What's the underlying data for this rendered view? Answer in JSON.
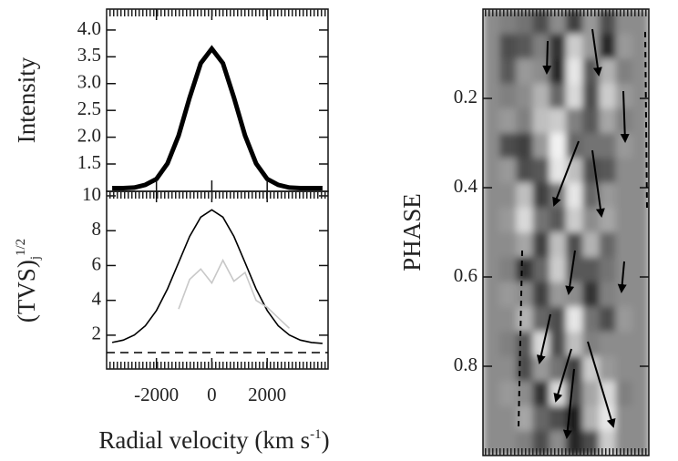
{
  "chart_data": [
    {
      "type": "line",
      "ylabel": "Intensity",
      "x": [
        -3600,
        -3200,
        -2800,
        -2400,
        -2000,
        -1600,
        -1200,
        -800,
        -400,
        0,
        400,
        800,
        1200,
        1600,
        2000,
        2400,
        2800,
        3200,
        3600,
        4000
      ],
      "series": [
        {
          "color": "#000000",
          "values": [
            1.05,
            1.05,
            1.06,
            1.11,
            1.22,
            1.51,
            2.03,
            2.74,
            3.38,
            3.65,
            3.38,
            2.74,
            2.03,
            1.51,
            1.22,
            1.11,
            1.06,
            1.05,
            1.05,
            1.05
          ]
        }
      ],
      "xlim": [
        -3800,
        4200
      ],
      "ylim": [
        0.99,
        4.39
      ],
      "yticks": [
        1.5,
        {
          "value": 2,
          "label": "2.0"
        },
        2.5,
        {
          "value": 3,
          "label": "3.0"
        },
        3.5,
        {
          "value": 4,
          "label": "4.0"
        }
      ]
    },
    {
      "type": "line",
      "ylabel": "(TVS)",
      "ylabel_sub": "j",
      "ylabel_sup": "1/2",
      "xlabel": "Radial velocity (km s",
      "xlabel_sup": "-1",
      "xlabel_end": ")",
      "x": [
        -3600,
        -3200,
        -2800,
        -2400,
        -2000,
        -1600,
        -1200,
        -800,
        -400,
        0,
        400,
        800,
        1200,
        1600,
        2000,
        2400,
        2800,
        3200,
        3600,
        4000
      ],
      "series": [
        {
          "color": "#000000",
          "values": [
            1.58,
            1.72,
            2.01,
            2.54,
            3.42,
            4.66,
            6.17,
            7.67,
            8.78,
            9.2,
            8.78,
            7.67,
            6.17,
            4.66,
            3.42,
            2.54,
            2.01,
            1.72,
            1.58,
            1.53
          ]
        },
        {
          "color": "#c8c8c8",
          "values": [
            null,
            null,
            null,
            null,
            null,
            null,
            3.5,
            5.2,
            5.8,
            5.0,
            6.3,
            5.1,
            5.6,
            4.0,
            3.6,
            3.0,
            2.4,
            null,
            null,
            null
          ]
        }
      ],
      "threshold": 1.0,
      "xlim": [
        -3800,
        4200
      ],
      "xticks": [
        -2000,
        0,
        2000
      ],
      "ylim": [
        0.06,
        10.26
      ],
      "yticks": [
        2,
        4,
        6,
        8,
        10
      ]
    },
    {
      "type": "heatmap",
      "ylabel": "PHASE",
      "ylim": [
        0,
        1
      ],
      "yticks": [
        0.2,
        0.4,
        0.6,
        0.8
      ],
      "z": [
        [
          0.55,
          0.5,
          0.45,
          0.3,
          0.55,
          0.25,
          0.6,
          0.3,
          0.55,
          0.55
        ],
        [
          0.55,
          0.3,
          0.35,
          0.5,
          0.2,
          0.8,
          0.6,
          0.15,
          0.6,
          0.55
        ],
        [
          0.55,
          0.35,
          0.6,
          0.55,
          0.15,
          0.9,
          0.35,
          0.7,
          0.5,
          0.55
        ],
        [
          0.55,
          0.5,
          0.55,
          0.7,
          0.4,
          0.85,
          0.3,
          0.8,
          0.6,
          0.55
        ],
        [
          0.55,
          0.6,
          0.5,
          0.75,
          0.8,
          0.5,
          0.35,
          0.65,
          0.5,
          0.55
        ],
        [
          0.55,
          0.3,
          0.25,
          0.6,
          0.95,
          0.4,
          0.45,
          0.45,
          0.6,
          0.55
        ],
        [
          0.55,
          0.6,
          0.3,
          0.35,
          0.9,
          0.75,
          0.3,
          0.35,
          0.55,
          0.55
        ],
        [
          0.55,
          0.55,
          0.75,
          0.25,
          0.45,
          0.9,
          0.4,
          0.6,
          0.55,
          0.55
        ],
        [
          0.55,
          0.6,
          0.85,
          0.45,
          0.35,
          0.8,
          0.55,
          0.65,
          0.55,
          0.55
        ],
        [
          0.55,
          0.55,
          0.65,
          0.25,
          0.75,
          0.3,
          0.7,
          0.4,
          0.55,
          0.55
        ],
        [
          0.55,
          0.5,
          0.2,
          0.4,
          0.8,
          0.35,
          0.35,
          0.45,
          0.55,
          0.55
        ],
        [
          0.55,
          0.6,
          0.55,
          0.25,
          0.6,
          0.55,
          0.2,
          0.5,
          0.55,
          0.55
        ],
        [
          0.55,
          0.55,
          0.7,
          0.4,
          0.3,
          0.9,
          0.45,
          0.3,
          0.6,
          0.55
        ],
        [
          0.55,
          0.5,
          0.35,
          0.85,
          0.3,
          0.75,
          0.5,
          0.55,
          0.55,
          0.55
        ],
        [
          0.55,
          0.55,
          0.3,
          0.6,
          0.45,
          0.25,
          0.8,
          0.6,
          0.55,
          0.55
        ],
        [
          0.55,
          0.6,
          0.55,
          0.2,
          0.85,
          0.3,
          0.65,
          0.85,
          0.5,
          0.55
        ],
        [
          0.55,
          0.55,
          0.65,
          0.4,
          0.3,
          0.1,
          0.7,
          0.9,
          0.55,
          0.55
        ],
        [
          0.55,
          0.55,
          0.5,
          0.3,
          0.55,
          0.15,
          0.3,
          0.8,
          0.55,
          0.55
        ]
      ]
    }
  ]
}
